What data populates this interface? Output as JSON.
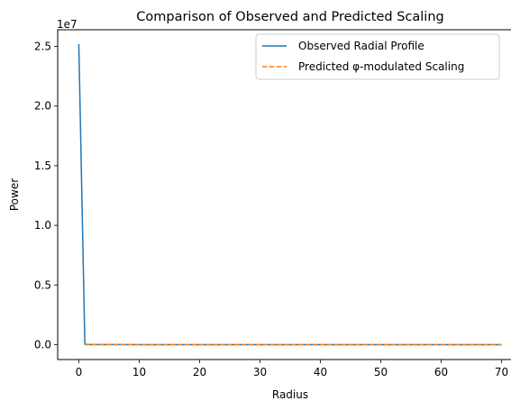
{
  "chart_data": {
    "type": "line",
    "title": "Comparison of Observed and Predicted Scaling",
    "xlabel": "Radius",
    "ylabel": "Power",
    "y_offset_label": "1e7",
    "xlim": [
      -3.5,
      73.5
    ],
    "ylim": [
      -1250000,
      26400000
    ],
    "x_ticks": [
      0,
      10,
      20,
      30,
      40,
      50,
      60,
      70
    ],
    "x_tick_labels": [
      "0",
      "10",
      "20",
      "30",
      "40",
      "50",
      "60",
      "70"
    ],
    "y_ticks": [
      0,
      5000000,
      10000000,
      15000000,
      20000000,
      25000000
    ],
    "y_tick_labels": [
      "0.0",
      "0.5",
      "1.0",
      "1.5",
      "2.0",
      "2.5"
    ],
    "grid": false,
    "legend_position": "top-right",
    "series": [
      {
        "name": "Observed Radial Profile",
        "color": "#1f77b4",
        "style": "solid",
        "x": [
          0,
          1,
          2,
          5,
          10,
          20,
          30,
          40,
          50,
          60,
          70
        ],
        "y": [
          25200000,
          30000,
          10000,
          2000,
          1000,
          500,
          300,
          200,
          150,
          120,
          100
        ]
      },
      {
        "name": "Predicted φ-modulated Scaling",
        "color": "#ff7f0e",
        "style": "dashed",
        "x": [
          1,
          70
        ],
        "y": [
          0,
          0
        ]
      }
    ]
  }
}
